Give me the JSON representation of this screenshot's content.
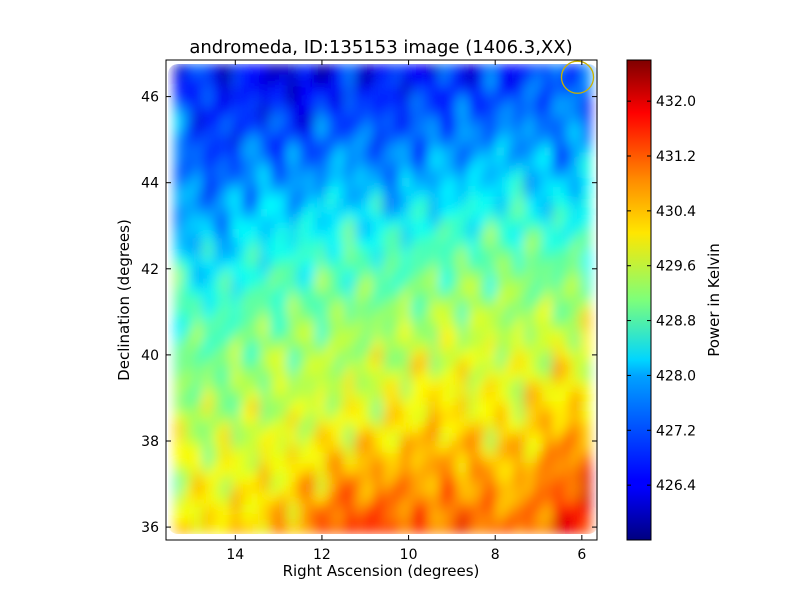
{
  "chart_data": {
    "type": "heatmap",
    "title": "andromeda, ID:135153 image (1406.3,XX)",
    "xlabel": "Right Ascension (degrees)",
    "ylabel": "Declination (degrees)",
    "xlim": [
      15.6,
      5.65
    ],
    "ylim": [
      35.7,
      46.85
    ],
    "x_ticks": [
      "14",
      "12",
      "10",
      "8",
      "6"
    ],
    "y_ticks": [
      "36",
      "38",
      "40",
      "42",
      "44",
      "46"
    ],
    "x_tick_values": [
      14,
      12,
      10,
      8,
      6
    ],
    "y_tick_values": [
      36,
      38,
      40,
      42,
      44,
      46
    ],
    "colorbar": {
      "label": "Power in Kelvin",
      "range": [
        425.6,
        432.6
      ],
      "ticks": [
        "432.0",
        "431.2",
        "430.4",
        "429.6",
        "428.8",
        "428.0",
        "427.2",
        "426.4"
      ],
      "tick_values": [
        432.0,
        431.2,
        430.4,
        429.6,
        428.8,
        428.0,
        427.2,
        426.4
      ],
      "colormap": "jet"
    },
    "data_extent": {
      "ra": [
        15.4,
        5.8
      ],
      "dec": [
        35.85,
        46.75
      ]
    },
    "field_ra": [
      15.3,
      14.5,
      13.5,
      12.5,
      11.5,
      10.5,
      9.5,
      8.5,
      7.5,
      6.5,
      5.8
    ],
    "field_dec": [
      46.5,
      44.5,
      42.5,
      40.5,
      38.5,
      36.0
    ],
    "field_values": [
      [
        426.9,
        426.5,
        426.4,
        426.1,
        426.5,
        426.5,
        426.6,
        426.6,
        426.7,
        427.1,
        427.0
      ],
      [
        427.3,
        426.8,
        427.4,
        427.1,
        427.6,
        427.2,
        427.5,
        427.6,
        427.9,
        427.4,
        427.8
      ],
      [
        428.1,
        427.8,
        428.3,
        428.4,
        428.6,
        428.5,
        428.7,
        428.8,
        428.9,
        428.7,
        428.8
      ],
      [
        428.9,
        428.8,
        429.1,
        429.2,
        429.3,
        429.4,
        429.5,
        429.6,
        429.5,
        429.6,
        429.6
      ],
      [
        429.5,
        429.4,
        429.6,
        429.7,
        429.8,
        429.9,
        430.3,
        430.1,
        430.0,
        430.5,
        430.2
      ],
      [
        430.1,
        430.2,
        430.3,
        430.6,
        431.4,
        431.3,
        431.0,
        431.2,
        430.8,
        431.4,
        432.2
      ]
    ],
    "beam_circle": {
      "ra": 6.1,
      "dec": 46.45,
      "radius_deg": 0.37,
      "color": "#cbb000"
    }
  }
}
